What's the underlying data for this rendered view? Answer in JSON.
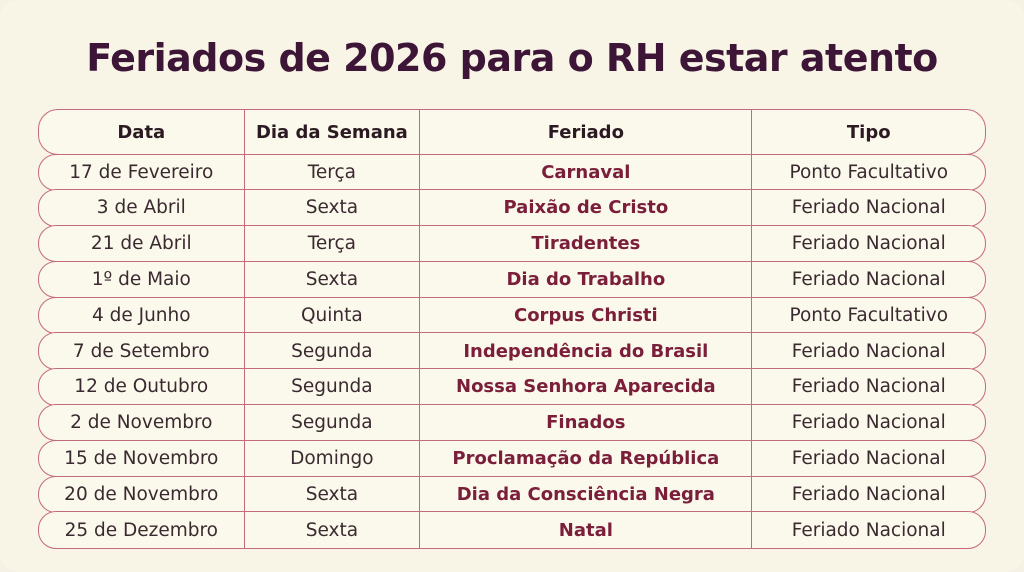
{
  "title": "Feriados de 2026 para o RH estar atento",
  "table": {
    "headers": [
      "Data",
      "Dia da Semana",
      "Feriado",
      "Tipo"
    ],
    "rows": [
      [
        "17 de Fevereiro",
        "Terça",
        "Carnaval",
        "Ponto Facultativo"
      ],
      [
        "3 de Abril",
        "Sexta",
        "Paixão de Cristo",
        "Feriado Nacional"
      ],
      [
        "21 de Abril",
        "Terça",
        "Tiradentes",
        "Feriado Nacional"
      ],
      [
        "1º de Maio",
        "Sexta",
        "Dia do Trabalho",
        "Feriado Nacional"
      ],
      [
        "4 de Junho",
        "Quinta",
        "Corpus Christi",
        "Ponto Facultativo"
      ],
      [
        "7 de Setembro",
        "Segunda",
        "Independência do Brasil",
        "Feriado Nacional"
      ],
      [
        "12 de Outubro",
        "Segunda",
        "Nossa Senhora Aparecida",
        "Feriado Nacional"
      ],
      [
        "2 de Novembro",
        "Segunda",
        "Finados",
        "Feriado Nacional"
      ],
      [
        "15 de Novembro",
        "Domingo",
        "Proclamação da República",
        "Feriado Nacional"
      ],
      [
        "20 de Novembro",
        "Sexta",
        "Dia da Consciência Negra",
        "Feriado Nacional"
      ],
      [
        "25 de Dezembro",
        "Sexta",
        "Natal",
        "Feriado Nacional"
      ]
    ]
  },
  "colors": {
    "title": "#3d1536",
    "border": "#c46a7e",
    "holiday_name": "#7a1e3a",
    "background": "#f8f4e6"
  }
}
